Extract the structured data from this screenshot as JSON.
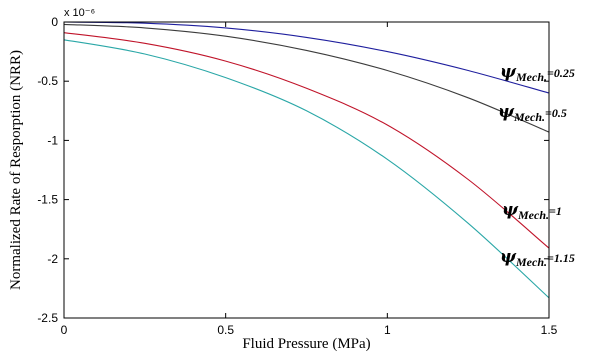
{
  "chart_data": {
    "type": "line",
    "title": "",
    "xlabel": "Fluid Pressure (MPa)",
    "ylabel": "Normalized Rate of Resporption (NRR)",
    "y_multiplier": "x 10⁻⁶",
    "xlim": [
      0,
      1.5
    ],
    "ylim": [
      -2.5,
      0
    ],
    "xticks": [
      0,
      0.5,
      1,
      1.5
    ],
    "xtick_labels": [
      "0",
      "0.5",
      "1",
      "1.5"
    ],
    "yticks": [
      0,
      -0.5,
      -1,
      -1.5,
      -2,
      -2.5
    ],
    "ytick_labels": [
      "0",
      "-0.5",
      "-1",
      "-1.5",
      "-2",
      "-2.5"
    ],
    "grid": false,
    "x": [
      0,
      0.25,
      0.5,
      0.75,
      1.0,
      1.25,
      1.5
    ],
    "series": [
      {
        "name": "ψMech.=0.25",
        "label_symbol": "ψ",
        "label_subscript": "Mech.",
        "label_value": "=0.25",
        "color": "#1f1f9e",
        "values": [
          0.0,
          -0.01,
          -0.05,
          -0.13,
          -0.25,
          -0.41,
          -0.6
        ]
      },
      {
        "name": "ψMech.=0.5",
        "label_symbol": "ψ",
        "label_subscript": "Mech.",
        "label_value": "=0.5",
        "color": "#3c3c3c",
        "values": [
          -0.02,
          -0.05,
          -0.12,
          -0.24,
          -0.41,
          -0.64,
          -0.93
        ]
      },
      {
        "name": "ψMech.=1",
        "label_symbol": "ψ",
        "label_subscript": "Mech.",
        "label_value": "=1",
        "color": "#c0142a",
        "values": [
          -0.09,
          -0.18,
          -0.33,
          -0.56,
          -0.87,
          -1.33,
          -1.91
        ]
      },
      {
        "name": "ψMech.=1.15",
        "label_symbol": "ψ",
        "label_subscript": "Mech.",
        "label_value": "=1.15",
        "color": "#2aa7a7",
        "values": [
          -0.15,
          -0.27,
          -0.47,
          -0.75,
          -1.16,
          -1.7,
          -2.33
        ]
      }
    ]
  }
}
